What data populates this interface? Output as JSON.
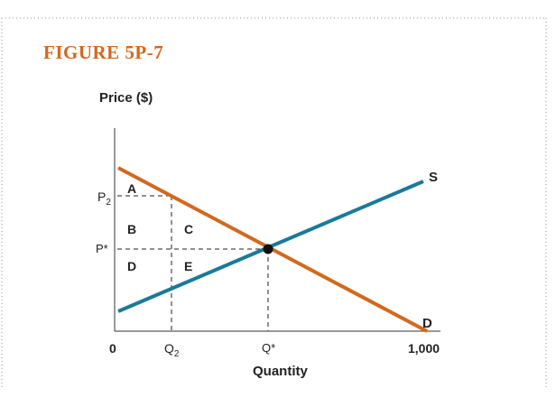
{
  "figure": {
    "title": "FIGURE 5P-7"
  },
  "chart_data": {
    "type": "line",
    "ylabel": "Price ($)",
    "xlabel": "Quantity",
    "x_ticks": [
      "0",
      "Q2",
      "Q*",
      "1,000"
    ],
    "y_ticks": [
      "P2",
      "P*"
    ],
    "series": [
      {
        "name": "D",
        "x": [
          0,
          1000
        ],
        "y": [
          1.0,
          0.0
        ]
      },
      {
        "name": "S",
        "x": [
          0,
          1000
        ],
        "y": [
          0.0,
          1.0
        ]
      }
    ],
    "region_labels": [
      "A",
      "B",
      "C",
      "D",
      "E"
    ],
    "xlim": [
      0,
      1000
    ],
    "equilibrium_point": "Q*, P*",
    "colors": {
      "demand": "#d2691e",
      "supply": "#1a7a99",
      "title": "#d2691e",
      "border": "#c8c8c8"
    }
  }
}
